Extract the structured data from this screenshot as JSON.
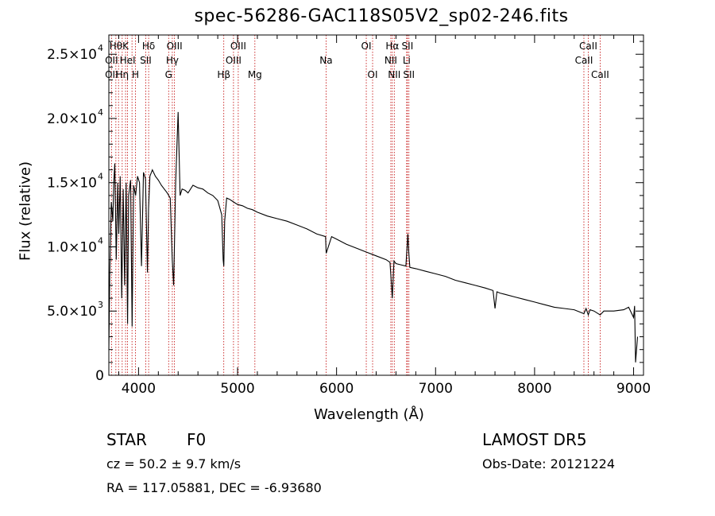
{
  "figure": {
    "title": "spec-56286-GAC118S05V2_sp02-246.fits",
    "obj_class": "STAR",
    "obj_subclass": "F0",
    "survey": "LAMOST DR5",
    "redshift_text": "cz = 50.2 ± 9.7 km/s",
    "obs_date_text": "Obs-Date: 20121224",
    "coords_text": "RA = 117.05881, DEC =  -6.93680"
  },
  "colors": {
    "spectrum": "#000000",
    "line_markers": "#c00000",
    "axes": "#000000"
  },
  "chart_data": {
    "type": "line",
    "title": "spec-56286-GAC118S05V2_sp02-246.fits",
    "xlabel": "Wavelength (Å)",
    "ylabel": "Flux (relative)",
    "xlim": [
      3700,
      9100
    ],
    "ylim": [
      0,
      26500
    ],
    "x_ticks": [
      4000,
      5000,
      6000,
      7000,
      8000,
      9000
    ],
    "x_tick_labels": [
      "4000",
      "5000",
      "6000",
      "7000",
      "8000",
      "9000"
    ],
    "y_ticks": [
      0,
      5000,
      10000,
      15000,
      20000,
      25000
    ],
    "y_tick_labels": [
      {
        "mant": "0",
        "exp": ""
      },
      {
        "mant": "5.0×10",
        "exp": "3"
      },
      {
        "mant": "1.0×10",
        "exp": "4"
      },
      {
        "mant": "1.5×10",
        "exp": "4"
      },
      {
        "mant": "2.0×10",
        "exp": "4"
      },
      {
        "mant": "2.5×10",
        "exp": "4"
      }
    ],
    "grid": false,
    "series": [
      {
        "color": "#000000",
        "x": [
          3700,
          3710,
          3725,
          3740,
          3750,
          3760,
          3775,
          3790,
          3800,
          3815,
          3830,
          3845,
          3860,
          3875,
          3889,
          3900,
          3920,
          3935,
          3950,
          3970,
          3990,
          4010,
          4030,
          4050,
          4070,
          4090,
          4101,
          4115,
          4140,
          4170,
          4200,
          4230,
          4260,
          4290,
          4320,
          4340,
          4355,
          4375,
          4400,
          4420,
          4440,
          4470,
          4500,
          4550,
          4600,
          4650,
          4700,
          4750,
          4800,
          4840,
          4855,
          4861,
          4870,
          4890,
          4920,
          4960,
          5000,
          5050,
          5100,
          5150,
          5200,
          5300,
          5400,
          5500,
          5600,
          5700,
          5800,
          5889,
          5895,
          5950,
          6000,
          6100,
          6200,
          6300,
          6400,
          6500,
          6540,
          6563,
          6580,
          6600,
          6650,
          6700,
          6720,
          6730,
          6740,
          6800,
          6900,
          7000,
          7100,
          7200,
          7300,
          7400,
          7500,
          7580,
          7600,
          7620,
          7650,
          7700,
          7800,
          7900,
          8000,
          8100,
          8200,
          8300,
          8400,
          8498,
          8520,
          8542,
          8560,
          8600,
          8662,
          8700,
          8800,
          8900,
          8950,
          9000,
          9010,
          9020,
          9040
        ],
        "y": [
          2000,
          8000,
          13500,
          12000,
          15000,
          16500,
          9000,
          15000,
          11000,
          15500,
          6000,
          14500,
          7000,
          15000,
          4000,
          14000,
          15200,
          3800,
          14800,
          14000,
          15500,
          15000,
          8500,
          15800,
          15300,
          8000,
          13000,
          15500,
          16000,
          15500,
          15200,
          14800,
          14500,
          14200,
          13800,
          9000,
          7000,
          15000,
          20500,
          14000,
          14500,
          14400,
          14200,
          14800,
          14600,
          14500,
          14200,
          14000,
          13600,
          12500,
          9000,
          8500,
          12000,
          13800,
          13700,
          13500,
          13300,
          13200,
          13000,
          12900,
          12700,
          12400,
          12200,
          12000,
          11700,
          11400,
          11000,
          10800,
          9500,
          10800,
          10600,
          10200,
          9900,
          9600,
          9300,
          9000,
          8800,
          6000,
          8900,
          8700,
          8600,
          8500,
          11000,
          9500,
          8400,
          8300,
          8100,
          7900,
          7700,
          7400,
          7200,
          7000,
          6800,
          6600,
          5200,
          6500,
          6400,
          6300,
          6100,
          5900,
          5700,
          5500,
          5300,
          5200,
          5100,
          4800,
          5200,
          4700,
          5100,
          5000,
          4700,
          5000,
          5000,
          5100,
          5300,
          4500,
          5400,
          1000,
          3000
        ]
      }
    ],
    "line_markers": [
      {
        "wl": 3727,
        "label": "OII"
      },
      {
        "wl": 3771,
        "label": "Hθ"
      },
      {
        "wl": 3798,
        "label": "Hθ"
      },
      {
        "wl": 3835,
        "label": "Hη"
      },
      {
        "wl": 3869,
        "label": "K"
      },
      {
        "wl": 3889,
        "label": "HeI"
      },
      {
        "wl": 3934,
        "label": "K"
      },
      {
        "wl": 3969,
        "label": "H"
      },
      {
        "wl": 4073,
        "label": "SII"
      },
      {
        "wl": 4102,
        "label": "Hδ"
      },
      {
        "wl": 4304,
        "label": "G"
      },
      {
        "wl": 4341,
        "label": "Hγ"
      },
      {
        "wl": 4363,
        "label": "OIII"
      },
      {
        "wl": 4861,
        "label": "Hβ"
      },
      {
        "wl": 4959,
        "label": "OIII"
      },
      {
        "wl": 5007,
        "label": "OIII"
      },
      {
        "wl": 5175,
        "label": "Mg"
      },
      {
        "wl": 5894,
        "label": "Na"
      },
      {
        "wl": 6300,
        "label": "OI"
      },
      {
        "wl": 6364,
        "label": "OI"
      },
      {
        "wl": 6548,
        "label": "NII"
      },
      {
        "wl": 6563,
        "label": "Hα"
      },
      {
        "wl": 6583,
        "label": "NII"
      },
      {
        "wl": 6708,
        "label": "Li"
      },
      {
        "wl": 6716,
        "label": "SII"
      },
      {
        "wl": 6731,
        "label": "SII"
      },
      {
        "wl": 8498,
        "label": "CaII"
      },
      {
        "wl": 8542,
        "label": "CaII"
      },
      {
        "wl": 8662,
        "label": "CaII"
      }
    ],
    "marker_text": [
      {
        "text": "Hθ",
        "wl": 3771,
        "row": 0
      },
      {
        "text": "K",
        "wl": 3869,
        "row": 0
      },
      {
        "text": "Hδ",
        "wl": 4102,
        "row": 0
      },
      {
        "text": "OIII",
        "wl": 4363,
        "row": 0
      },
      {
        "text": "OIII",
        "wl": 5007,
        "row": 0
      },
      {
        "text": "OI",
        "wl": 6300,
        "row": 0
      },
      {
        "text": "Hα",
        "wl": 6563,
        "row": 0
      },
      {
        "text": "SII",
        "wl": 6716,
        "row": 0
      },
      {
        "text": "CaII",
        "wl": 8542,
        "row": 0
      },
      {
        "text": "OII",
        "wl": 3727,
        "row": 1
      },
      {
        "text": "HeI",
        "wl": 3889,
        "row": 1
      },
      {
        "text": "SII",
        "wl": 4073,
        "row": 1
      },
      {
        "text": "Hγ",
        "wl": 4341,
        "row": 1
      },
      {
        "text": "OIII",
        "wl": 4959,
        "row": 1
      },
      {
        "text": "Na",
        "wl": 5894,
        "row": 1
      },
      {
        "text": "NII",
        "wl": 6548,
        "row": 1
      },
      {
        "text": "Li",
        "wl": 6708,
        "row": 1
      },
      {
        "text": "CaII",
        "wl": 8498,
        "row": 1
      },
      {
        "text": "OII",
        "wl": 3727,
        "row": 2
      },
      {
        "text": "Hη",
        "wl": 3835,
        "row": 2
      },
      {
        "text": "H",
        "wl": 3969,
        "row": 2
      },
      {
        "text": "G",
        "wl": 4304,
        "row": 2
      },
      {
        "text": "Hβ",
        "wl": 4861,
        "row": 2
      },
      {
        "text": "Mg",
        "wl": 5175,
        "row": 2
      },
      {
        "text": "OI",
        "wl": 6364,
        "row": 2
      },
      {
        "text": "NII",
        "wl": 6583,
        "row": 2
      },
      {
        "text": "SII",
        "wl": 6731,
        "row": 2
      },
      {
        "text": "CaII",
        "wl": 8662,
        "row": 2
      }
    ]
  }
}
